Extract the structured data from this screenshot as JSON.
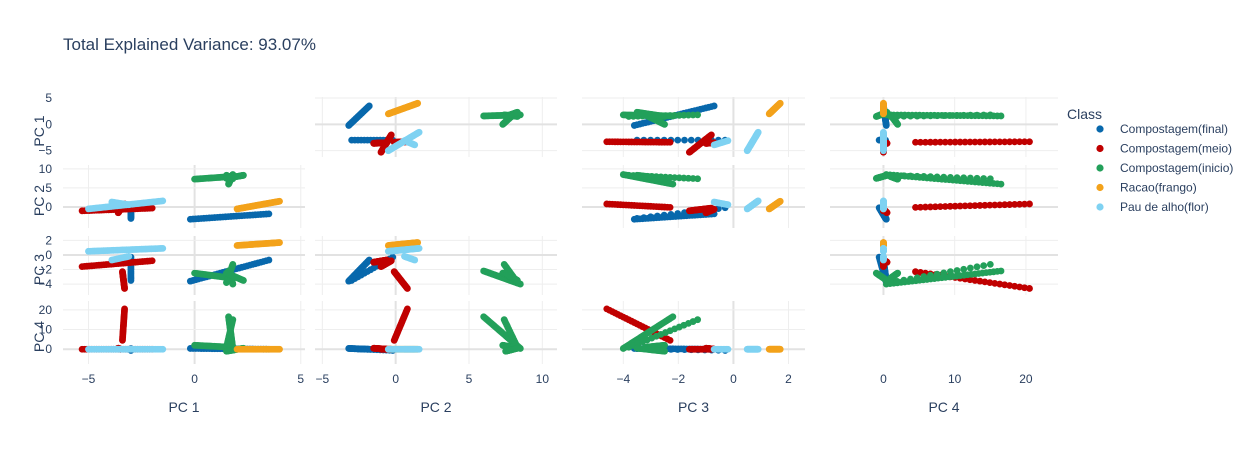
{
  "chart_data": {
    "type": "scatter",
    "title": "Total Explained Variance: 93.07%",
    "dimensions": [
      "PC 1",
      "PC 2",
      "PC 3",
      "PC 4"
    ],
    "axis_ranges": {
      "PC 1": [
        -6.2,
        5.2
      ],
      "PC 2": [
        -5.5,
        11.0
      ],
      "PC 3": [
        -5.5,
        2.6
      ],
      "PC 4": [
        -7.5,
        24.5
      ]
    },
    "axis_ticks": {
      "PC 1": [
        -5,
        0,
        5
      ],
      "PC 2": [
        -5,
        0,
        5,
        10
      ],
      "PC 3": [
        -4,
        -2,
        0,
        2
      ],
      "PC 4": [
        0,
        10,
        20
      ]
    },
    "row_ticks": {
      "PC 1": [
        5,
        0,
        -5
      ],
      "PC 2": [
        10,
        5,
        0
      ],
      "PC 3": [
        2,
        0,
        -2,
        -4
      ],
      "PC 4": [
        20,
        10,
        0
      ]
    },
    "grid": true,
    "legend_position": "top-right",
    "legend_title": "Class",
    "series": [
      {
        "name": "Compostagem(final)",
        "color": "#0868ac",
        "segments": [
          {
            "from": [
              -3.0,
              -0.2,
              -0.3,
              -0.6
            ],
            "to": [
              -3.0,
              -3.0,
              -3.5,
              0.3
            ],
            "n": 14
          },
          {
            "from": [
              -0.2,
              -3.2,
              -3.6,
              0.4
            ],
            "to": [
              3.5,
              -1.8,
              -0.7,
              0.0
            ],
            "n": 30
          }
        ]
      },
      {
        "name": "Compostagem(meio)",
        "color": "#c00000",
        "segments": [
          {
            "from": [
              -3.5,
              -0.6,
              -0.7,
              0.0
            ],
            "to": [
              -3.6,
              -1.5,
              -1.0,
              0.5
            ],
            "n": 40
          },
          {
            "from": [
              -3.4,
              -0.1,
              -2.3,
              4.5
            ],
            "to": [
              -3.3,
              0.8,
              -4.6,
              20.5
            ],
            "n": 24
          },
          {
            "from": [
              -5.3,
              -1.0,
              -1.6,
              0.0
            ],
            "to": [
              -2.0,
              -0.3,
              -0.8,
              0.0
            ],
            "n": 30
          }
        ]
      },
      {
        "name": "Compostagem(inicio)",
        "color": "#23a05a",
        "segments": [
          {
            "from": [
              1.6,
              6.0,
              -2.2,
              16.5
            ],
            "to": [
              1.8,
              8.5,
              -4.0,
              0.4
            ],
            "n": 32
          },
          {
            "from": [
              0.0,
              7.3,
              -2.5,
              2.0
            ],
            "to": [
              1.8,
              8.0,
              -3.2,
              1.0
            ],
            "n": 26
          },
          {
            "from": [
              1.5,
              8.3,
              -3.8,
              1.0
            ],
            "to": [
              1.8,
              7.4,
              -1.3,
              15.0
            ],
            "n": 16
          },
          {
            "from": [
              1.5,
              7.5,
              -2.5,
              -1.0
            ],
            "to": [
              2.3,
              8.3,
              -3.5,
              0.5
            ],
            "n": 24
          }
        ]
      },
      {
        "name": "Racao(frango)",
        "color": "#f3a21b",
        "segments": [
          {
            "from": [
              2.0,
              -0.5,
              1.3,
              0.0
            ],
            "to": [
              4.0,
              1.5,
              1.7,
              0.0
            ],
            "n": 40
          }
        ]
      },
      {
        "name": "Pau de alho(flor)",
        "color": "#7fd2f2",
        "segments": [
          {
            "from": [
              -5.0,
              -0.5,
              0.5,
              0.0
            ],
            "to": [
              -1.5,
              1.6,
              0.9,
              0.0
            ],
            "n": 40
          },
          {
            "from": [
              -3.9,
              1.3,
              -0.7,
              0.0
            ],
            "to": [
              -3.1,
              0.6,
              -0.2,
              0.0
            ],
            "n": 10
          }
        ]
      }
    ]
  }
}
